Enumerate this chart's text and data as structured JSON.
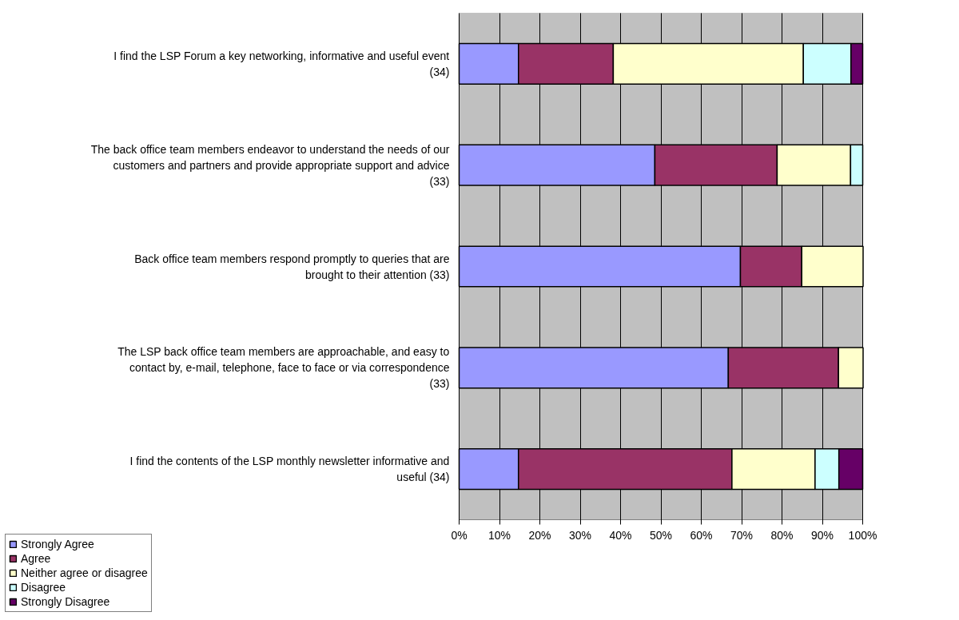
{
  "chart_data": {
    "type": "bar",
    "orientation": "horizontal",
    "stacked": true,
    "categories": [
      "I find the LSP Forum a key networking, informative and useful event (34)",
      "The back office team members endeavor to understand the needs of our customers and partners and provide appropriate support and advice (33)",
      "Back office team members respond promptly to queries that are brought to their attention (33)",
      "The LSP back office team members are approachable, and easy to contact by, e-mail, telephone, face to face or via correspondence (33)",
      "I find the contents of the LSP monthly newsletter informative and useful (34)"
    ],
    "series": [
      {
        "name": "Strongly Agree",
        "color": "#9999ff",
        "values": [
          14.7,
          48.5,
          69.7,
          66.7,
          14.7
        ]
      },
      {
        "name": "Agree",
        "color": "#993366",
        "values": [
          23.5,
          30.3,
          15.2,
          27.3,
          52.9
        ]
      },
      {
        "name": "Neither agree or disagree",
        "color": "#ffffcc",
        "values": [
          47.1,
          18.2,
          15.2,
          6.1,
          20.6
        ]
      },
      {
        "name": "Disagree",
        "color": "#ccffff",
        "values": [
          11.8,
          3.0,
          0,
          0,
          5.9
        ]
      },
      {
        "name": "Strongly Disagree",
        "color": "#660066",
        "values": [
          2.9,
          0,
          0,
          0,
          5.9
        ]
      }
    ],
    "xlim": [
      0,
      100
    ],
    "xticks": [
      {
        "value": 0,
        "label": "0%"
      },
      {
        "value": 10,
        "label": "10%"
      },
      {
        "value": 20,
        "label": "20%"
      },
      {
        "value": 30,
        "label": "30%"
      },
      {
        "value": 40,
        "label": "40%"
      },
      {
        "value": 50,
        "label": "50%"
      },
      {
        "value": 60,
        "label": "60%"
      },
      {
        "value": 70,
        "label": "70%"
      },
      {
        "value": 80,
        "label": "80%"
      },
      {
        "value": 90,
        "label": "90%"
      },
      {
        "value": 100,
        "label": "100%"
      }
    ],
    "grid": "x",
    "legend": "bottom left"
  }
}
